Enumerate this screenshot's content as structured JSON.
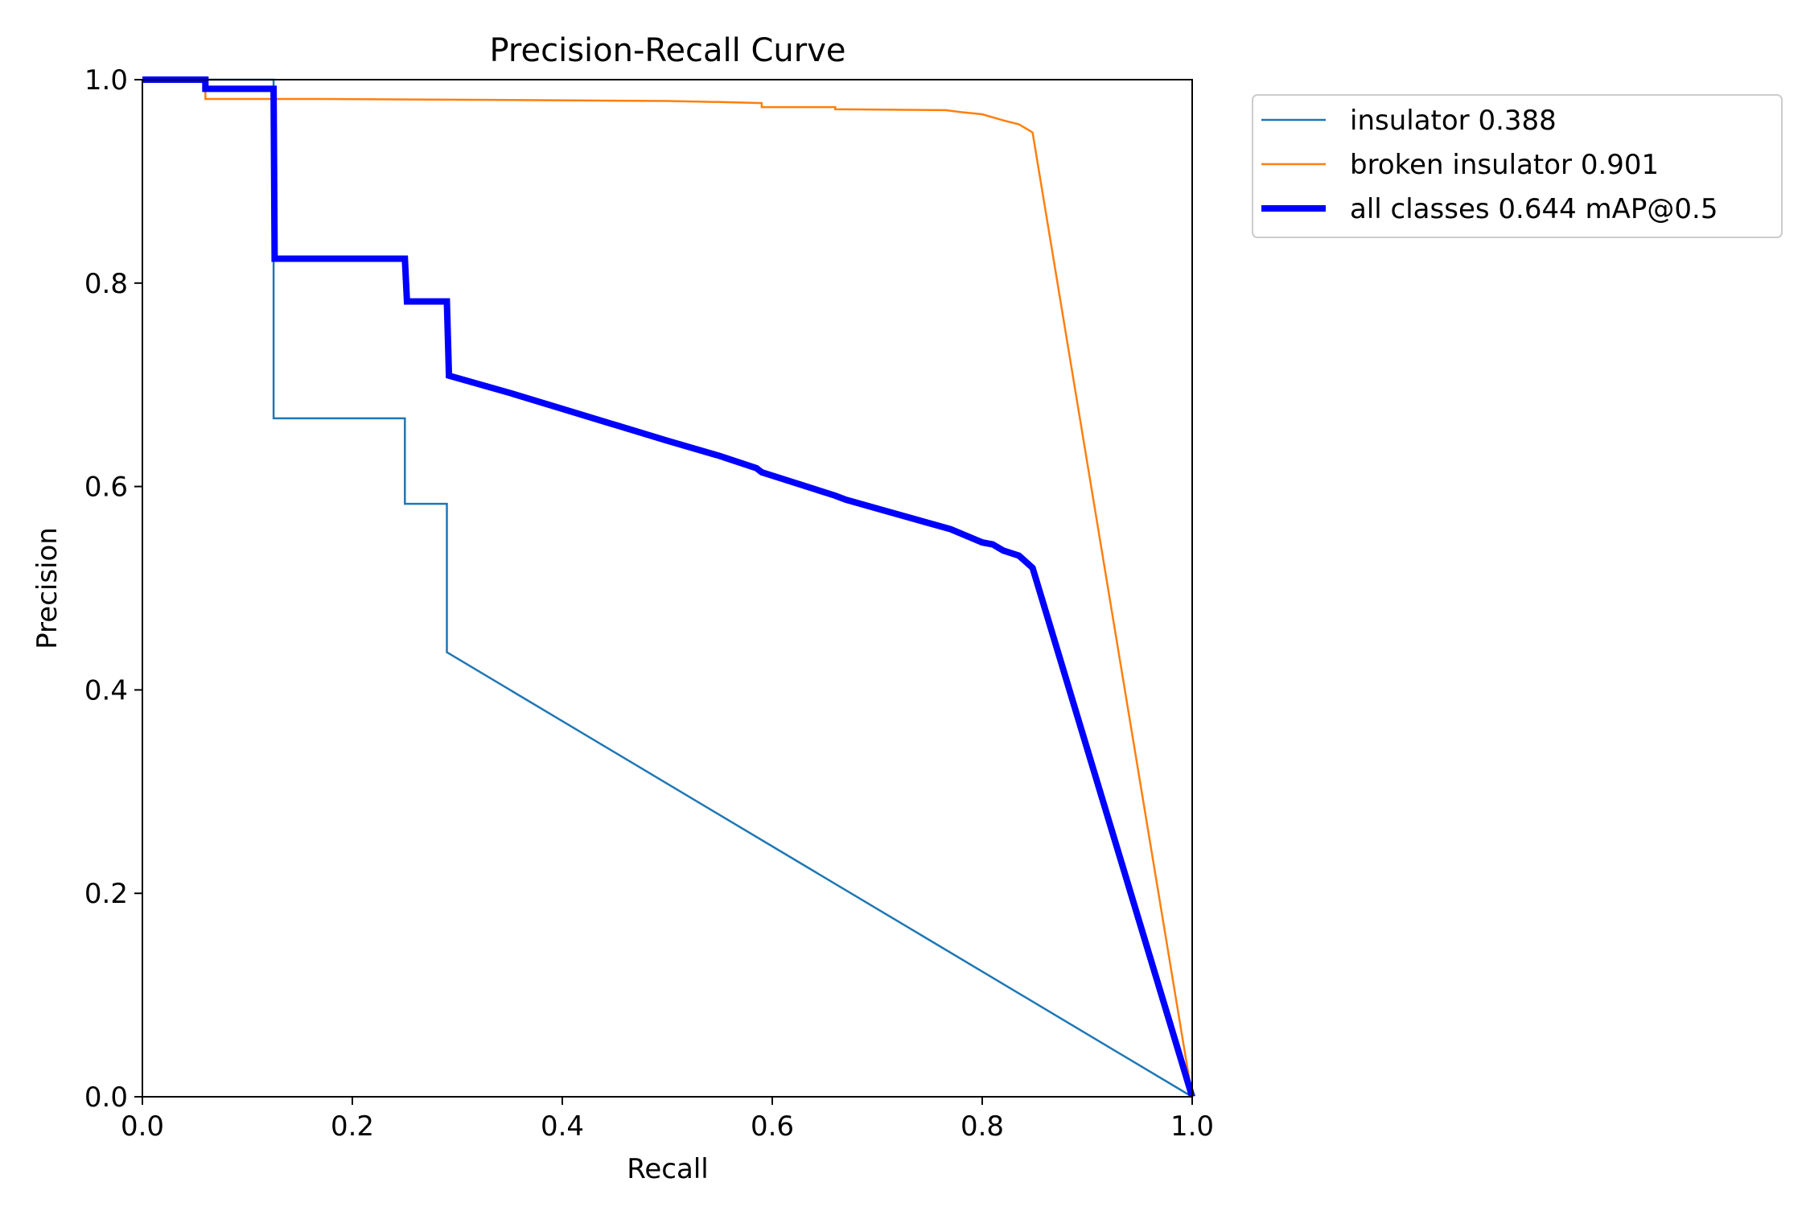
{
  "chart_data": {
    "type": "line",
    "title": "Precision-Recall Curve",
    "xlabel": "Recall",
    "ylabel": "Precision",
    "xlim": [
      0.0,
      1.0
    ],
    "ylim": [
      0.0,
      1.0
    ],
    "xticks": [
      "0.0",
      "0.2",
      "0.4",
      "0.6",
      "0.8",
      "1.0"
    ],
    "yticks": [
      "0.0",
      "0.2",
      "0.4",
      "0.6",
      "0.8",
      "1.0"
    ],
    "grid": false,
    "legend_position": "outside-upper-right",
    "series": [
      {
        "name": "insulator 0.388",
        "color": "#1f77b4",
        "weight": "thin",
        "x": [
          0.0,
          0.125,
          0.125,
          0.25,
          0.25,
          0.29,
          0.29,
          1.0
        ],
        "y": [
          1.0,
          1.0,
          0.667,
          0.667,
          0.583,
          0.583,
          0.437,
          0.0
        ]
      },
      {
        "name": "broken insulator 0.901",
        "color": "#ff7f0e",
        "weight": "thin",
        "x": [
          0.0,
          0.06,
          0.06,
          0.17,
          0.35,
          0.5,
          0.55,
          0.59,
          0.59,
          0.66,
          0.66,
          0.765,
          0.78,
          0.8,
          0.82,
          0.835,
          0.845,
          0.848,
          1.0
        ],
        "y": [
          1.0,
          1.0,
          0.981,
          0.981,
          0.98,
          0.979,
          0.978,
          0.977,
          0.973,
          0.973,
          0.971,
          0.97,
          0.968,
          0.966,
          0.96,
          0.956,
          0.95,
          0.948,
          0.0
        ]
      },
      {
        "name": "all classes 0.644 mAP@0.5",
        "color": "#0000ff",
        "weight": "thick",
        "x": [
          0.0,
          0.06,
          0.06,
          0.125,
          0.126,
          0.25,
          0.252,
          0.29,
          0.292,
          0.35,
          0.5,
          0.55,
          0.585,
          0.59,
          0.66,
          0.67,
          0.77,
          0.8,
          0.81,
          0.82,
          0.835,
          0.848,
          1.0
        ],
        "y": [
          1.0,
          1.0,
          0.991,
          0.991,
          0.824,
          0.824,
          0.782,
          0.782,
          0.709,
          0.692,
          0.645,
          0.63,
          0.618,
          0.614,
          0.591,
          0.587,
          0.558,
          0.545,
          0.543,
          0.537,
          0.532,
          0.52,
          0.0
        ]
      }
    ]
  }
}
